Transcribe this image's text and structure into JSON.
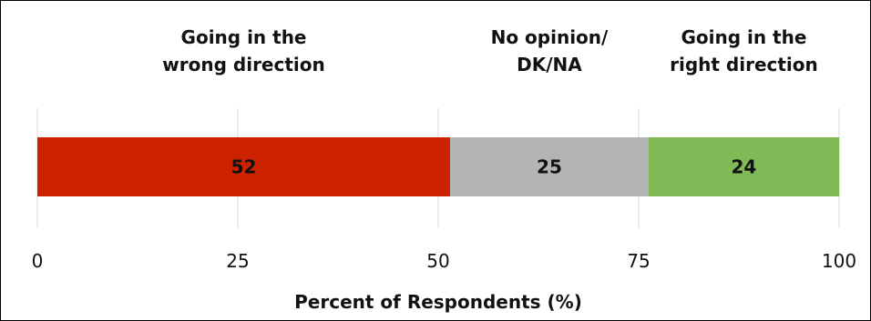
{
  "chart_data": {
    "type": "bar",
    "orientation": "horizontal",
    "stacked": true,
    "title": "",
    "xlabel": "Percent of Respondents (%)",
    "ylabel": "",
    "xlim": [
      0,
      100
    ],
    "xticks": [
      "0",
      "25",
      "50",
      "75",
      "100"
    ],
    "grid": true,
    "legend": "none",
    "series": [
      {
        "name": "Going in the wrong direction",
        "label_lines": [
          "Going in the",
          "wrong direction"
        ],
        "value": 52,
        "color": "#cc2200"
      },
      {
        "name": "No opinion/ DK/NA",
        "label_lines": [
          "No opinion/",
          "DK/NA"
        ],
        "value": 25,
        "color": "#b4b4b4"
      },
      {
        "name": "Going in the right direction",
        "label_lines": [
          "Going in the",
          "right direction"
        ],
        "value": 24,
        "color": "#7fba56"
      }
    ]
  }
}
